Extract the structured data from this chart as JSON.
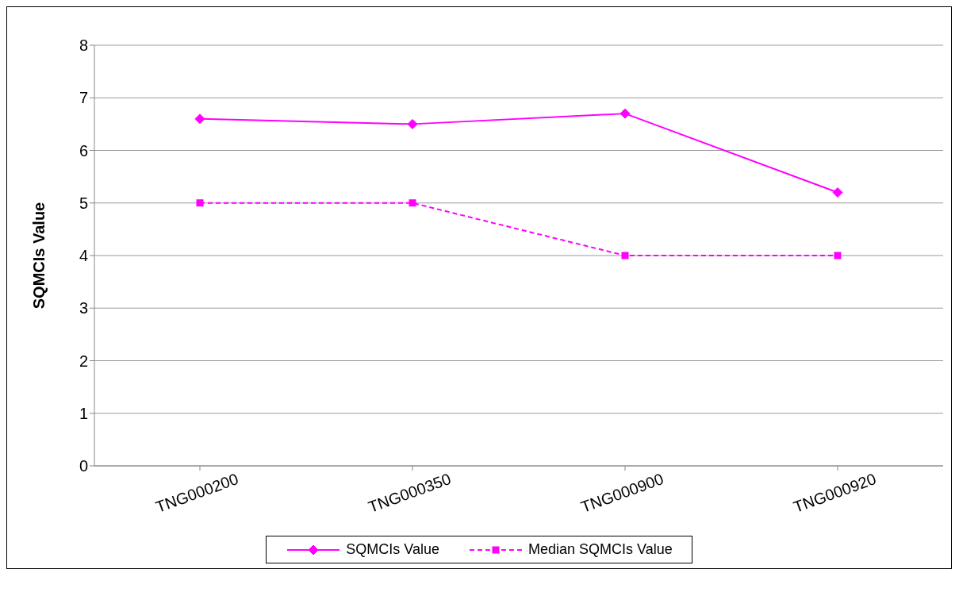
{
  "chart_data": {
    "type": "line",
    "categories": [
      "TNG000200",
      "TNG000350",
      "TNG000900",
      "TNG000920"
    ],
    "ylabel": "SQMCIs Value",
    "ylim": [
      0,
      8
    ],
    "yticks": [
      0,
      1,
      2,
      3,
      4,
      5,
      6,
      7,
      8
    ],
    "grid": "y",
    "legend": "bottom",
    "series": [
      {
        "name": "SQMCIs Value",
        "color": "#ff00ff",
        "values": [
          6.6,
          6.5,
          6.7,
          5.2
        ],
        "marker": "diamond",
        "line_style": "solid"
      },
      {
        "name": "Median SQMCIs Value",
        "color": "#ff00ff",
        "values": [
          5,
          5,
          4,
          4
        ],
        "marker": "square",
        "line_style": "dashed"
      }
    ]
  }
}
